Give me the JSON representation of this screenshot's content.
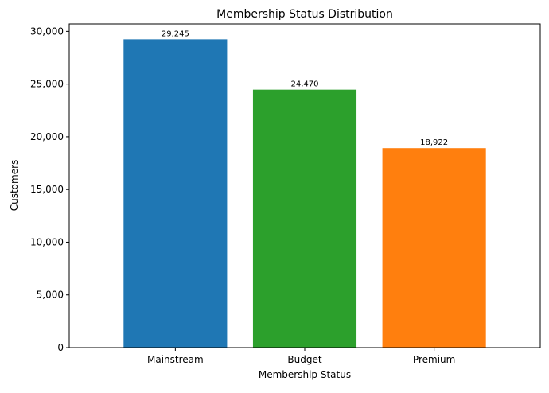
{
  "chart_data": {
    "type": "bar",
    "title": "Membership Status Distribution",
    "xlabel": "Membership Status",
    "ylabel": "Customers",
    "categories": [
      "Mainstream",
      "Budget",
      "Premium"
    ],
    "values": [
      29245,
      24470,
      18922
    ],
    "value_labels": [
      "29,245",
      "24,470",
      "18,922"
    ],
    "colors": [
      "#1f77b4",
      "#2ca02c",
      "#ff7f0e"
    ],
    "ylim": [
      0,
      30707
    ],
    "yticks": [
      0,
      5000,
      10000,
      15000,
      20000,
      25000,
      30000
    ],
    "ytick_labels": [
      "0",
      "5,000",
      "10,000",
      "15,000",
      "20,000",
      "25,000",
      "30,000"
    ],
    "grid": false,
    "legend": false
  }
}
